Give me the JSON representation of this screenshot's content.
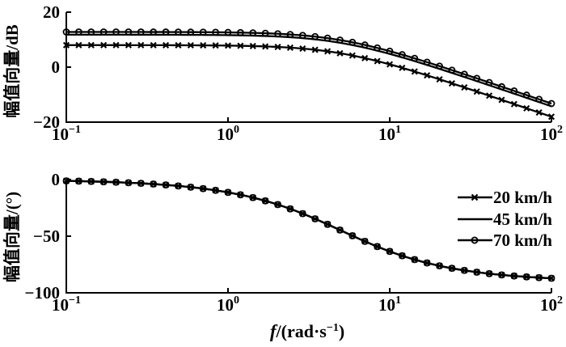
{
  "figure": {
    "background": "#ffffff",
    "ink": "#000000",
    "kind": "bode-frequency-response"
  },
  "xlabel": {
    "variable": "f",
    "unit_open": "/(rad·s",
    "unit_sup": "−1",
    "unit_close": ")"
  },
  "legend": {
    "position": "bottom-right-of-phase-subplot",
    "items": [
      {
        "label": "20 km/h",
        "marker": "x"
      },
      {
        "label": "45 km/h",
        "marker": "line"
      },
      {
        "label": "70 km/h",
        "marker": "circle-plus"
      }
    ]
  },
  "chart_data": [
    {
      "type": "line",
      "subplot": "magnitude",
      "ylabel": "幅值向量/dB",
      "ylim": [
        -20,
        20
      ],
      "yticks": [
        20,
        0,
        -20
      ],
      "ytick_labels": [
        "20",
        "0",
        "−20"
      ],
      "xscale": "log",
      "xlim": [
        0.1,
        100
      ],
      "xticks": [
        {
          "value": 0.1,
          "label_base": "10",
          "label_exp": "−1"
        },
        {
          "value": 1,
          "label_base": "10",
          "label_exp": "0"
        },
        {
          "value": 10,
          "label_base": "10",
          "label_exp": "1"
        },
        {
          "value": 100,
          "label_base": "10",
          "label_exp": "2"
        }
      ],
      "grid": false,
      "marker_count": 40,
      "series": [
        {
          "name": "20 km/h",
          "marker": "x",
          "dc_gain_db": 8.0,
          "corner_rad_s": 5.0,
          "sample_f": [
            0.1,
            0.32,
            1,
            3.2,
            10,
            31.6,
            100
          ],
          "sample_db": [
            8.0,
            8.0,
            7.8,
            6.5,
            1.0,
            -8.1,
            -18.0
          ]
        },
        {
          "name": "45 km/h",
          "marker": "line",
          "dc_gain_db": 11.8,
          "corner_rad_s": 5.0,
          "sample_f": [
            0.1,
            0.32,
            1,
            3.2,
            10,
            31.6,
            100
          ],
          "sample_db": [
            11.8,
            11.8,
            11.6,
            10.3,
            4.8,
            -4.3,
            -14.2
          ]
        },
        {
          "name": "70 km/h",
          "marker": "circle-plus",
          "dc_gain_db": 12.8,
          "corner_rad_s": 5.0,
          "sample_f": [
            0.1,
            0.32,
            1,
            3.2,
            10,
            31.6,
            100
          ],
          "sample_db": [
            12.8,
            12.8,
            12.6,
            11.3,
            5.8,
            -3.3,
            -13.2
          ]
        }
      ]
    },
    {
      "type": "line",
      "subplot": "phase",
      "ylabel": "幅值向量/(°)",
      "ylim": [
        -100,
        0
      ],
      "yticks": [
        0,
        -50,
        -100
      ],
      "ytick_labels": [
        "0",
        "−50",
        "−100"
      ],
      "xscale": "log",
      "xlim": [
        0.1,
        100
      ],
      "xticks": [
        {
          "value": 0.1,
          "label_base": "10",
          "label_exp": "−1"
        },
        {
          "value": 1,
          "label_base": "10",
          "label_exp": "0"
        },
        {
          "value": 10,
          "label_base": "10",
          "label_exp": "1"
        },
        {
          "value": 100,
          "label_base": "10",
          "label_exp": "2"
        }
      ],
      "grid": false,
      "marker_count": 40,
      "series": [
        {
          "name": "20 km/h",
          "marker": "x",
          "corner_rad_s": 5.0,
          "sample_f": [
            0.1,
            0.32,
            1,
            3.2,
            10,
            31.6,
            100
          ],
          "sample_deg": [
            -1.1,
            -3.6,
            -11.3,
            -32.3,
            -63.4,
            -81.0,
            -87.1
          ]
        },
        {
          "name": "45 km/h",
          "marker": "line",
          "corner_rad_s": 5.0,
          "sample_f": [
            0.1,
            0.32,
            1,
            3.2,
            10,
            31.6,
            100
          ],
          "sample_deg": [
            -1.1,
            -3.6,
            -11.3,
            -32.3,
            -63.4,
            -81.0,
            -87.1
          ]
        },
        {
          "name": "70 km/h",
          "marker": "circle-plus",
          "corner_rad_s": 5.0,
          "sample_f": [
            0.1,
            0.32,
            1,
            3.2,
            10,
            31.6,
            100
          ],
          "sample_deg": [
            -1.1,
            -3.6,
            -11.3,
            -32.3,
            -63.4,
            -81.0,
            -87.1
          ]
        }
      ]
    }
  ]
}
